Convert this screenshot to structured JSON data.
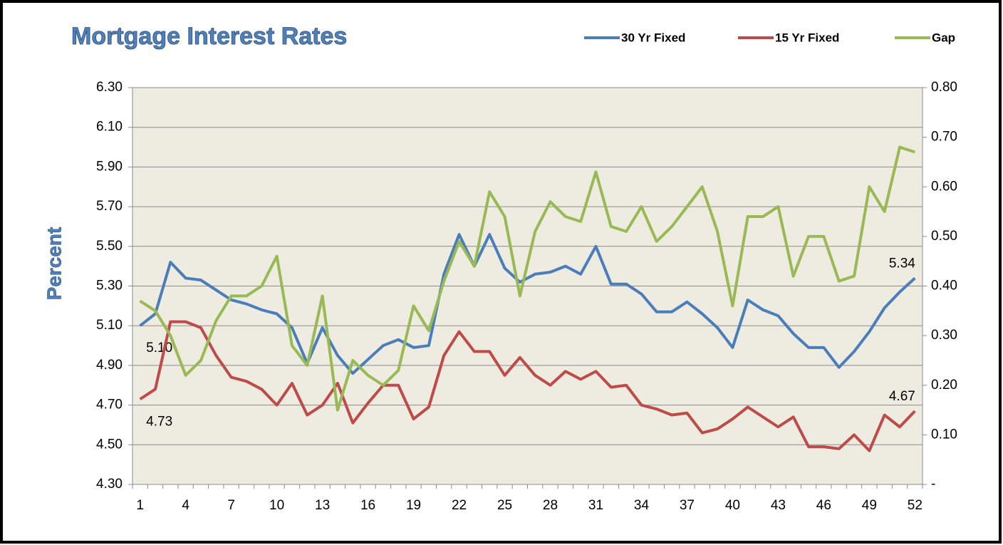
{
  "chart_data": {
    "type": "line",
    "title": "Mortgage Interest Rates",
    "y_label": "Percent",
    "categories": [
      1,
      null,
      null,
      4,
      null,
      null,
      7,
      null,
      null,
      10,
      null,
      null,
      13,
      null,
      null,
      16,
      null,
      null,
      19,
      null,
      null,
      22,
      null,
      null,
      25,
      null,
      null,
      28,
      null,
      null,
      31,
      null,
      null,
      34,
      null,
      null,
      37,
      null,
      null,
      40,
      null,
      null,
      43,
      null,
      null,
      46,
      null,
      null,
      49,
      null,
      null,
      52
    ],
    "ylim": [
      4.3,
      6.3
    ],
    "yticks": [
      {
        "value": 4.3,
        "label": "4.30"
      },
      {
        "value": 4.5,
        "label": "4.50"
      },
      {
        "value": 4.7,
        "label": "4.70"
      },
      {
        "value": 4.9,
        "label": "4.90"
      },
      {
        "value": 5.1,
        "label": "5.10"
      },
      {
        "value": 5.3,
        "label": "5.30"
      },
      {
        "value": 5.5,
        "label": "5.50"
      },
      {
        "value": 5.7,
        "label": "5.70"
      },
      {
        "value": 5.9,
        "label": "5.90"
      },
      {
        "value": 6.1,
        "label": "6.10"
      },
      {
        "value": 6.3,
        "label": "6.30"
      }
    ],
    "y2lim": [
      0,
      0.8
    ],
    "y2ticks": [
      {
        "value": 0,
        "label": "-"
      },
      {
        "value": 0.1,
        "label": "0.10"
      },
      {
        "value": 0.2,
        "label": "0.20"
      },
      {
        "value": 0.3,
        "label": "0.30"
      },
      {
        "value": 0.4,
        "label": "0.40"
      },
      {
        "value": 0.5,
        "label": "0.50"
      },
      {
        "value": 0.6,
        "label": "0.60"
      },
      {
        "value": 0.7,
        "label": "0.70"
      },
      {
        "value": 0.8,
        "label": "0.80"
      }
    ],
    "grid": true,
    "legend": "top-right",
    "series": [
      {
        "name": "30 Yr Fixed",
        "color": "#4a7ebb",
        "values": [
          5.1,
          5.16,
          5.42,
          5.34,
          5.33,
          5.28,
          5.23,
          5.21,
          5.18,
          5.16,
          5.09,
          4.91,
          5.09,
          4.95,
          4.86,
          4.93,
          5.0,
          5.03,
          4.99,
          5.0,
          5.36,
          5.56,
          5.4,
          5.56,
          5.39,
          5.32,
          5.36,
          5.37,
          5.4,
          5.36,
          5.5,
          5.31,
          5.31,
          5.26,
          5.17,
          5.17,
          5.22,
          5.16,
          5.09,
          4.99,
          5.23,
          5.18,
          5.15,
          5.06,
          4.99,
          4.99,
          4.89,
          4.97,
          5.07,
          5.19,
          5.27,
          5.34
        ],
        "value_labels": [
          "5.10",
          null,
          null,
          null,
          null,
          null,
          null,
          null,
          null,
          null,
          null,
          null,
          null,
          null,
          null,
          null,
          null,
          null,
          null,
          null,
          null,
          null,
          null,
          null,
          null,
          null,
          null,
          null,
          null,
          null,
          null,
          null,
          null,
          null,
          null,
          null,
          null,
          null,
          null,
          null,
          null,
          null,
          null,
          null,
          null,
          null,
          null,
          null,
          null,
          null,
          null,
          "5.34"
        ]
      },
      {
        "name": "15 Yr Fixed",
        "color": "#be4b48",
        "values": [
          4.73,
          4.78,
          5.12,
          5.12,
          5.09,
          4.95,
          4.84,
          4.82,
          4.78,
          4.7,
          4.81,
          4.65,
          4.7,
          4.81,
          4.61,
          4.71,
          4.8,
          4.8,
          4.63,
          4.69,
          4.95,
          5.07,
          4.97,
          4.97,
          4.85,
          4.94,
          4.85,
          4.8,
          4.87,
          4.83,
          4.87,
          4.79,
          4.8,
          4.7,
          4.68,
          4.65,
          4.66,
          4.56,
          4.58,
          4.63,
          4.69,
          4.64,
          4.59,
          4.64,
          4.49,
          4.49,
          4.48,
          4.55,
          4.47,
          4.65,
          4.59,
          4.67
        ],
        "value_labels": [
          "4.73",
          null,
          null,
          null,
          null,
          null,
          null,
          null,
          null,
          null,
          null,
          null,
          null,
          null,
          null,
          null,
          null,
          null,
          null,
          null,
          null,
          null,
          null,
          null,
          null,
          null,
          null,
          null,
          null,
          null,
          null,
          null,
          null,
          null,
          null,
          null,
          null,
          null,
          null,
          null,
          null,
          null,
          null,
          null,
          null,
          null,
          null,
          null,
          null,
          null,
          null,
          "4.67"
        ]
      },
      {
        "name": "Gap",
        "color": "#98b954",
        "axis": "y2",
        "values": [
          0.37,
          0.35,
          0.3,
          0.22,
          0.25,
          0.33,
          0.38,
          0.38,
          0.4,
          0.46,
          0.28,
          0.24,
          0.38,
          0.15,
          0.25,
          0.22,
          0.2,
          0.23,
          0.36,
          0.31,
          0.41,
          0.49,
          0.44,
          0.59,
          0.54,
          0.38,
          0.51,
          0.57,
          0.54,
          0.53,
          0.63,
          0.52,
          0.51,
          0.56,
          0.49,
          0.52,
          0.56,
          0.6,
          0.51,
          0.36,
          0.54,
          0.54,
          0.56,
          0.42,
          0.5,
          0.5,
          0.41,
          0.42,
          0.6,
          0.55,
          0.68,
          0.67
        ]
      }
    ]
  }
}
